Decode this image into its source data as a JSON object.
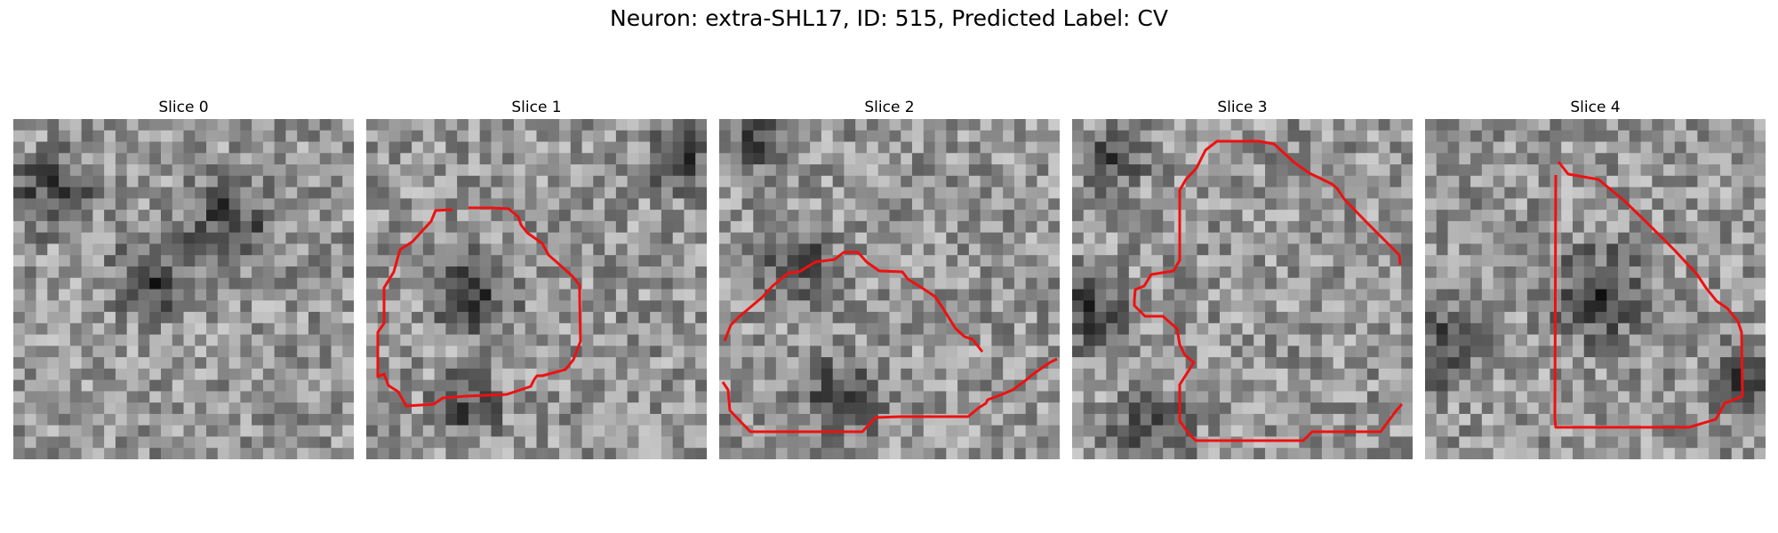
{
  "figure": {
    "title": "Neuron: extra-SHL17, ID: 515, Predicted Label: CV"
  },
  "colors": {
    "contour": "#ee1111",
    "background": "#ffffff"
  },
  "panels": [
    {
      "title": "Slice 0",
      "has_contour": false,
      "seed": 11,
      "dark_blobs": [
        [
          0.1,
          0.2,
          5
        ],
        [
          0.62,
          0.28,
          6
        ],
        [
          0.4,
          0.45,
          5
        ]
      ]
    },
    {
      "title": "Slice 1",
      "has_contour": true,
      "seed": 23,
      "dark_blobs": [
        [
          0.3,
          0.5,
          5
        ],
        [
          0.28,
          0.82,
          4
        ],
        [
          0.9,
          0.1,
          4
        ]
      ]
    },
    {
      "title": "Slice 2",
      "has_contour": true,
      "seed": 37,
      "dark_blobs": [
        [
          0.1,
          0.05,
          3
        ],
        [
          0.35,
          0.8,
          5
        ],
        [
          0.2,
          0.4,
          5
        ]
      ]
    },
    {
      "title": "Slice 3",
      "has_contour": true,
      "seed": 41,
      "dark_blobs": [
        [
          0.04,
          0.55,
          5
        ],
        [
          0.2,
          0.9,
          5
        ],
        [
          0.1,
          0.1,
          4
        ]
      ]
    },
    {
      "title": "Slice 4",
      "has_contour": true,
      "seed": 53,
      "dark_blobs": [
        [
          0.04,
          0.65,
          5
        ],
        [
          0.5,
          0.5,
          6
        ],
        [
          0.9,
          0.75,
          4
        ]
      ]
    }
  ]
}
